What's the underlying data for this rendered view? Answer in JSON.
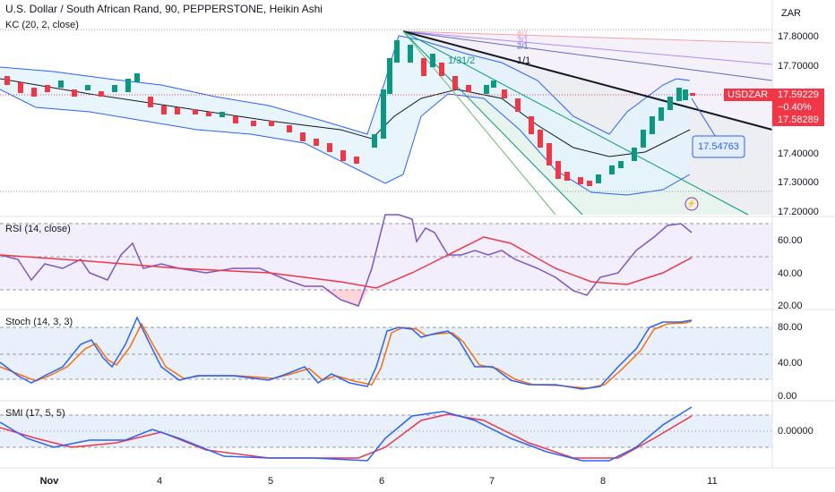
{
  "header": {
    "title": "U.S. Dollar / South African Rand, 90, PEPPERSTONE, Heikin Ashi",
    "indicator": "KC (20, 2, close)",
    "currency": "ZAR"
  },
  "price_axis": {
    "ticks": [
      "17.80000",
      "17.70000",
      "17.40000",
      "17.30000",
      "17.20000"
    ]
  },
  "price_box": {
    "symbol": "USDZAR",
    "last": "17.59229",
    "change": "−0.40%",
    "previous": "17.58289"
  },
  "cursor_label": "17.54763",
  "fan_labels": [
    "1/3",
    "1/2",
    "1/1",
    "2/1",
    "3/1",
    "8/1"
  ],
  "panes": [
    {
      "label": "RSI (14, close)",
      "ticks": [
        "60.00",
        "40.00",
        "20.00"
      ]
    },
    {
      "label": "Stoch (14, 3, 3)",
      "ticks": [
        "80.00",
        "40.00",
        "0.00"
      ]
    },
    {
      "label": "SMI (17, 5, 5)",
      "ticks": [
        "0.00000"
      ]
    }
  ],
  "time_axis": {
    "labels": [
      "Nov",
      "4",
      "5",
      "6",
      "7",
      "8",
      "11"
    ]
  }
}
